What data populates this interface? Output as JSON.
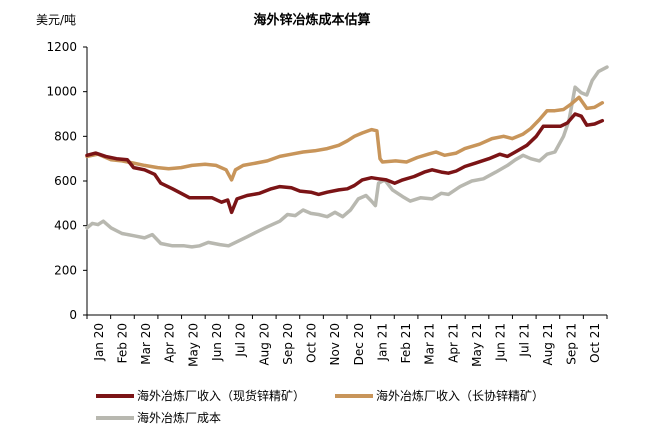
{
  "chart_data": {
    "type": "line",
    "title": "海外锌冶炼成本估算",
    "ylabel": "美元/吨",
    "xlabel": "",
    "ylim": [
      0,
      1200
    ],
    "yticks": [
      0,
      200,
      400,
      600,
      800,
      1000,
      1200
    ],
    "grid": false,
    "legend_position": "bottom",
    "categories": [
      "Jan 20",
      "Feb 20",
      "Mar 20",
      "Apr 20",
      "May 20",
      "Jun 20",
      "Jul 20",
      "Aug 20",
      "Sep 20",
      "Oct 20",
      "Nov 20",
      "Dec 20",
      "Jan 21",
      "Feb 21",
      "Mar 21",
      "Apr 21",
      "May 21",
      "Jun 21",
      "Jul 21",
      "Aug 21",
      "Sep 21",
      "Oct 21"
    ],
    "x_start": "2020-01-01",
    "x_end": "2021-10-31",
    "series": [
      {
        "name": "海外冶炼厂收入（现货锌精矿）",
        "color": "#7b1416",
        "points": [
          [
            "2020-01-01",
            715
          ],
          [
            "2020-01-12",
            725
          ],
          [
            "2020-01-25",
            710
          ],
          [
            "2020-02-08",
            700
          ],
          [
            "2020-02-22",
            695
          ],
          [
            "2020-03-01",
            660
          ],
          [
            "2020-03-15",
            650
          ],
          [
            "2020-03-28",
            630
          ],
          [
            "2020-04-05",
            590
          ],
          [
            "2020-04-20",
            565
          ],
          [
            "2020-05-01",
            545
          ],
          [
            "2020-05-12",
            525
          ],
          [
            "2020-05-25",
            525
          ],
          [
            "2020-06-10",
            525
          ],
          [
            "2020-06-22",
            505
          ],
          [
            "2020-06-30",
            515
          ],
          [
            "2020-07-05",
            460
          ],
          [
            "2020-07-12",
            520
          ],
          [
            "2020-07-25",
            535
          ],
          [
            "2020-08-10",
            545
          ],
          [
            "2020-08-25",
            565
          ],
          [
            "2020-09-05",
            575
          ],
          [
            "2020-09-20",
            570
          ],
          [
            "2020-10-01",
            555
          ],
          [
            "2020-10-15",
            550
          ],
          [
            "2020-10-25",
            540
          ],
          [
            "2020-11-05",
            550
          ],
          [
            "2020-11-20",
            560
          ],
          [
            "2020-12-01",
            565
          ],
          [
            "2020-12-10",
            580
          ],
          [
            "2020-12-20",
            605
          ],
          [
            "2021-01-01",
            615
          ],
          [
            "2021-01-10",
            610
          ],
          [
            "2021-01-20",
            605
          ],
          [
            "2021-01-31",
            590
          ],
          [
            "2021-02-10",
            605
          ],
          [
            "2021-02-25",
            620
          ],
          [
            "2021-03-10",
            640
          ],
          [
            "2021-03-20",
            650
          ],
          [
            "2021-04-01",
            640
          ],
          [
            "2021-04-10",
            635
          ],
          [
            "2021-04-20",
            645
          ],
          [
            "2021-05-01",
            665
          ],
          [
            "2021-05-15",
            680
          ],
          [
            "2021-06-01",
            700
          ],
          [
            "2021-06-15",
            720
          ],
          [
            "2021-06-25",
            710
          ],
          [
            "2021-07-05",
            730
          ],
          [
            "2021-07-20",
            760
          ],
          [
            "2021-08-01",
            800
          ],
          [
            "2021-08-10",
            845
          ],
          [
            "2021-08-20",
            845
          ],
          [
            "2021-09-01",
            845
          ],
          [
            "2021-09-10",
            860
          ],
          [
            "2021-09-20",
            900
          ],
          [
            "2021-09-28",
            890
          ],
          [
            "2021-10-05",
            850
          ],
          [
            "2021-10-15",
            855
          ],
          [
            "2021-10-25",
            870
          ]
        ]
      },
      {
        "name": "海外冶炼厂收入（长协锌精矿）",
        "color": "#c8955a",
        "points": [
          [
            "2020-01-01",
            710
          ],
          [
            "2020-01-15",
            720
          ],
          [
            "2020-02-01",
            695
          ],
          [
            "2020-02-15",
            690
          ],
          [
            "2020-03-01",
            680
          ],
          [
            "2020-03-15",
            670
          ],
          [
            "2020-04-01",
            660
          ],
          [
            "2020-04-15",
            655
          ],
          [
            "2020-05-01",
            660
          ],
          [
            "2020-05-15",
            670
          ],
          [
            "2020-06-01",
            675
          ],
          [
            "2020-06-15",
            670
          ],
          [
            "2020-06-28",
            650
          ],
          [
            "2020-07-05",
            605
          ],
          [
            "2020-07-10",
            650
          ],
          [
            "2020-07-20",
            670
          ],
          [
            "2020-08-05",
            680
          ],
          [
            "2020-08-20",
            690
          ],
          [
            "2020-09-05",
            710
          ],
          [
            "2020-09-20",
            720
          ],
          [
            "2020-10-05",
            730
          ],
          [
            "2020-10-20",
            735
          ],
          [
            "2020-11-05",
            745
          ],
          [
            "2020-11-20",
            760
          ],
          [
            "2020-12-01",
            780
          ],
          [
            "2020-12-10",
            800
          ],
          [
            "2020-12-20",
            815
          ],
          [
            "2021-01-01",
            830
          ],
          [
            "2021-01-08",
            825
          ],
          [
            "2021-01-12",
            700
          ],
          [
            "2021-01-15",
            685
          ],
          [
            "2021-02-01",
            690
          ],
          [
            "2021-02-15",
            685
          ],
          [
            "2021-03-01",
            705
          ],
          [
            "2021-03-15",
            720
          ],
          [
            "2021-03-25",
            730
          ],
          [
            "2021-04-05",
            715
          ],
          [
            "2021-04-20",
            725
          ],
          [
            "2021-05-01",
            745
          ],
          [
            "2021-05-20",
            765
          ],
          [
            "2021-06-05",
            790
          ],
          [
            "2021-06-20",
            800
          ],
          [
            "2021-07-01",
            790
          ],
          [
            "2021-07-15",
            810
          ],
          [
            "2021-07-25",
            835
          ],
          [
            "2021-08-05",
            875
          ],
          [
            "2021-08-15",
            915
          ],
          [
            "2021-08-25",
            915
          ],
          [
            "2021-09-05",
            920
          ],
          [
            "2021-09-15",
            945
          ],
          [
            "2021-09-25",
            975
          ],
          [
            "2021-10-05",
            925
          ],
          [
            "2021-10-15",
            930
          ],
          [
            "2021-10-25",
            950
          ]
        ]
      },
      {
        "name": "海外冶炼厂成本",
        "color": "#b8b8b0",
        "points": [
          [
            "2020-01-01",
            390
          ],
          [
            "2020-01-08",
            410
          ],
          [
            "2020-01-15",
            405
          ],
          [
            "2020-01-22",
            420
          ],
          [
            "2020-02-01",
            390
          ],
          [
            "2020-02-15",
            365
          ],
          [
            "2020-03-01",
            355
          ],
          [
            "2020-03-15",
            345
          ],
          [
            "2020-03-25",
            360
          ],
          [
            "2020-04-05",
            320
          ],
          [
            "2020-04-20",
            310
          ],
          [
            "2020-05-05",
            310
          ],
          [
            "2020-05-15",
            305
          ],
          [
            "2020-05-25",
            310
          ],
          [
            "2020-06-05",
            325
          ],
          [
            "2020-06-20",
            315
          ],
          [
            "2020-07-01",
            310
          ],
          [
            "2020-07-10",
            325
          ],
          [
            "2020-07-25",
            350
          ],
          [
            "2020-08-05",
            370
          ],
          [
            "2020-08-20",
            395
          ],
          [
            "2020-09-05",
            420
          ],
          [
            "2020-09-15",
            450
          ],
          [
            "2020-09-25",
            445
          ],
          [
            "2020-10-05",
            470
          ],
          [
            "2020-10-15",
            455
          ],
          [
            "2020-10-25",
            450
          ],
          [
            "2020-11-05",
            440
          ],
          [
            "2020-11-15",
            460
          ],
          [
            "2020-11-25",
            440
          ],
          [
            "2020-12-05",
            470
          ],
          [
            "2020-12-15",
            520
          ],
          [
            "2020-12-25",
            535
          ],
          [
            "2021-01-01",
            510
          ],
          [
            "2021-01-06",
            490
          ],
          [
            "2021-01-10",
            590
          ],
          [
            "2021-01-18",
            605
          ],
          [
            "2021-01-28",
            560
          ],
          [
            "2021-02-10",
            530
          ],
          [
            "2021-02-20",
            510
          ],
          [
            "2021-03-05",
            525
          ],
          [
            "2021-03-20",
            520
          ],
          [
            "2021-04-01",
            545
          ],
          [
            "2021-04-10",
            540
          ],
          [
            "2021-04-25",
            575
          ],
          [
            "2021-05-10",
            600
          ],
          [
            "2021-05-25",
            610
          ],
          [
            "2021-06-10",
            640
          ],
          [
            "2021-06-25",
            670
          ],
          [
            "2021-07-05",
            695
          ],
          [
            "2021-07-15",
            715
          ],
          [
            "2021-07-25",
            700
          ],
          [
            "2021-08-05",
            690
          ],
          [
            "2021-08-15",
            720
          ],
          [
            "2021-08-25",
            730
          ],
          [
            "2021-09-05",
            800
          ],
          [
            "2021-09-12",
            870
          ],
          [
            "2021-09-20",
            1020
          ],
          [
            "2021-09-28",
            995
          ],
          [
            "2021-10-05",
            985
          ],
          [
            "2021-10-12",
            1050
          ],
          [
            "2021-10-20",
            1090
          ],
          [
            "2021-10-31",
            1110
          ]
        ]
      }
    ]
  }
}
